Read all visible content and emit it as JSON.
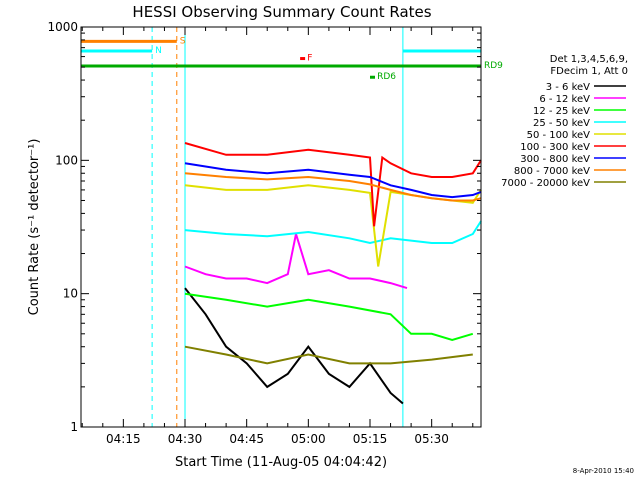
{
  "chart_data": {
    "type": "line",
    "title": "HESSI Observing Summary Count Rates",
    "xlabel": "Start Time (11-Aug-05 04:04:42)",
    "ylabel": "Count Rate (s⁻¹ detector⁻¹)",
    "x_unit": "time (HH:MM)",
    "xlim": [
      "04:04:42",
      "05:42:00"
    ],
    "x_ticks": [
      "04:15",
      "04:30",
      "04:45",
      "05:00",
      "05:15",
      "05:30"
    ],
    "y_scale": "log",
    "ylim": [
      1,
      1000
    ],
    "y_ticks": [
      "1",
      "10",
      "100",
      "1000"
    ],
    "grid": false,
    "legend_position": "right",
    "legend_header": [
      "Det 1,3,4,5,6,9,",
      "FDecim 1, Att 0"
    ],
    "footer_date": "8-Apr-2010 15:40",
    "series": [
      {
        "name": "3 - 6 keV",
        "color": "#000000",
        "x": [
          "04:30",
          "04:35",
          "04:40",
          "04:45",
          "04:50",
          "04:55",
          "05:00",
          "05:05",
          "05:10",
          "05:15",
          "05:20",
          "05:23"
        ],
        "values": [
          11,
          7,
          4,
          3,
          2,
          2.5,
          4,
          2.5,
          2,
          3,
          1.8,
          1.5
        ]
      },
      {
        "name": "6 - 12 keV",
        "color": "#ff00ff",
        "x": [
          "04:30",
          "04:35",
          "04:40",
          "04:45",
          "04:50",
          "04:55",
          "04:57",
          "05:00",
          "05:05",
          "05:10",
          "05:15",
          "05:20",
          "05:24"
        ],
        "values": [
          16,
          14,
          13,
          13,
          12,
          14,
          28,
          14,
          15,
          13,
          13,
          12,
          11
        ]
      },
      {
        "name": "12 - 25 keV",
        "color": "#00ff00",
        "x": [
          "04:30",
          "04:40",
          "04:50",
          "05:00",
          "05:10",
          "05:20",
          "05:25",
          "05:30",
          "05:35",
          "05:40"
        ],
        "values": [
          10,
          9,
          8,
          9,
          8,
          7,
          5,
          5,
          4.5,
          5
        ]
      },
      {
        "name": "25 - 50 keV",
        "color": "#00ffff",
        "x": [
          "04:30",
          "04:40",
          "04:50",
          "05:00",
          "05:10",
          "05:15",
          "05:20",
          "05:25",
          "05:30",
          "05:35",
          "05:40",
          "05:42"
        ],
        "values": [
          30,
          28,
          27,
          29,
          26,
          24,
          26,
          25,
          24,
          24,
          28,
          35
        ]
      },
      {
        "name": "50 - 100 keV",
        "color": "#e0e000",
        "x": [
          "04:30",
          "04:40",
          "04:50",
          "05:00",
          "05:10",
          "05:15",
          "05:17",
          "05:20",
          "05:25",
          "05:30",
          "05:35",
          "05:40",
          "05:42"
        ],
        "values": [
          65,
          60,
          60,
          65,
          60,
          57,
          16,
          58,
          55,
          52,
          50,
          48,
          60
        ]
      },
      {
        "name": "100 - 300 keV",
        "color": "#ff0000",
        "x": [
          "04:30",
          "04:40",
          "04:50",
          "05:00",
          "05:10",
          "05:15",
          "05:16",
          "05:18",
          "05:20",
          "05:25",
          "05:30",
          "05:35",
          "05:40",
          "05:42"
        ],
        "values": [
          135,
          110,
          110,
          120,
          110,
          105,
          32,
          105,
          95,
          80,
          75,
          75,
          80,
          100
        ]
      },
      {
        "name": "300 - 800 keV",
        "color": "#0000ff",
        "x": [
          "04:30",
          "04:40",
          "04:50",
          "05:00",
          "05:10",
          "05:15",
          "05:20",
          "05:25",
          "05:30",
          "05:35",
          "05:40",
          "05:42"
        ],
        "values": [
          95,
          85,
          80,
          85,
          78,
          75,
          65,
          60,
          55,
          53,
          55,
          58
        ]
      },
      {
        "name": "800 - 7000 keV",
        "color": "#ff8000",
        "x": [
          "04:30",
          "04:40",
          "04:50",
          "05:00",
          "05:10",
          "05:15",
          "05:20",
          "05:25",
          "05:30",
          "05:35",
          "05:40",
          "05:42"
        ],
        "values": [
          80,
          75,
          72,
          75,
          70,
          66,
          60,
          55,
          52,
          50,
          50,
          52
        ]
      },
      {
        "name": "7000 - 20000 keV",
        "color": "#808000",
        "x": [
          "04:30",
          "04:40",
          "04:50",
          "05:00",
          "05:10",
          "05:20",
          "05:30",
          "05:40"
        ],
        "values": [
          4,
          3.5,
          3,
          3.5,
          3,
          3,
          3.2,
          3.5
        ]
      }
    ],
    "flags": [
      {
        "label": "S",
        "color": "#ff8000",
        "x_start": "04:04:42",
        "x_end": "04:28",
        "y": 780
      },
      {
        "label": "N",
        "color": "#00ffff",
        "x_start": "04:04:42",
        "x_end": "04:22",
        "y": 660
      },
      {
        "label": "",
        "color": "#00ffff",
        "x_start": "05:23",
        "x_end": "05:42",
        "y": 660
      },
      {
        "label": "F",
        "color": "#ff0000",
        "x_start": "04:58",
        "x_end": "04:59",
        "y": 580
      },
      {
        "label": "RD9",
        "color": "#00aa00",
        "x_start": "04:04:42",
        "x_end": "05:42",
        "y": 510
      },
      {
        "label": "RD6",
        "color": "#00aa00",
        "x_start": "05:15",
        "x_end": "05:16",
        "y": 420
      }
    ],
    "vertical_lines": [
      {
        "x": "04:04:42",
        "color": "#00ffff",
        "style": "solid"
      },
      {
        "x": "04:22",
        "color": "#00ffff",
        "style": "dashed"
      },
      {
        "x": "04:28",
        "color": "#ff8000",
        "style": "dashed"
      },
      {
        "x": "04:30",
        "color": "#00ffff",
        "style": "solid"
      },
      {
        "x": "05:23",
        "color": "#00ffff",
        "style": "solid"
      },
      {
        "x": "05:42",
        "color": "#00ffff",
        "style": "dashed"
      }
    ]
  }
}
